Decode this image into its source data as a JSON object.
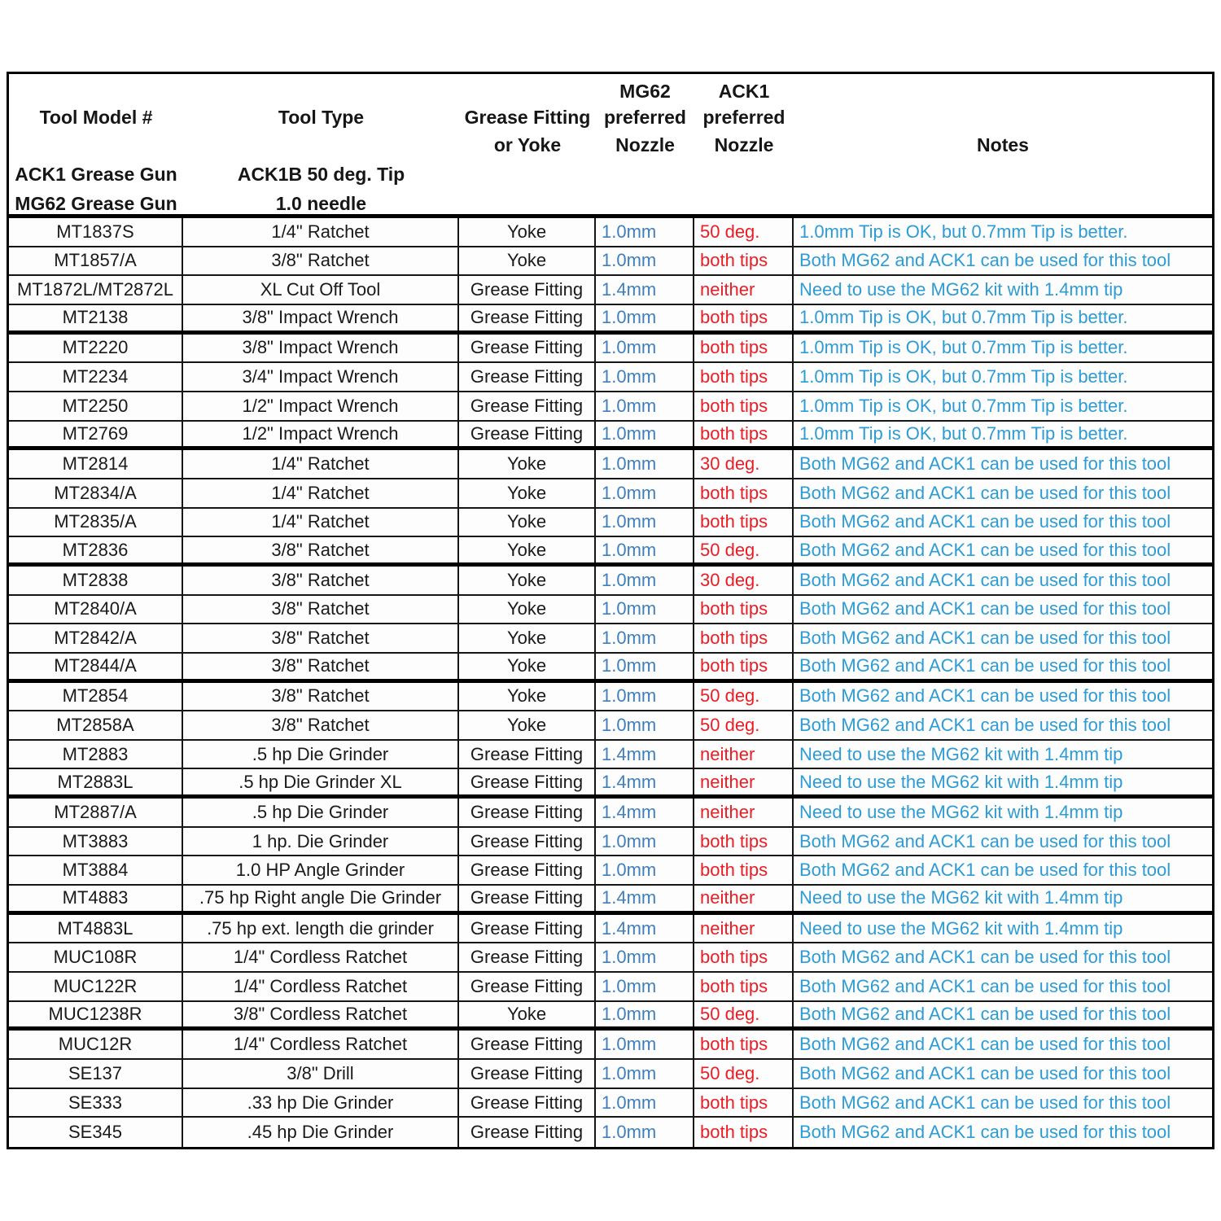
{
  "colors": {
    "nozzle_blue": "#3F7FBE",
    "preferred_red": "#ED1C24",
    "note_blue": "#2D9BD5",
    "body_text": "#1A1A1A",
    "border": "#000000"
  },
  "table": {
    "header": {
      "col1": {
        "title": "Tool Model #",
        "sub1": "ACK1 Grease Gun",
        "sub2": "MG62 Grease Gun"
      },
      "col2": {
        "title": "Tool Type",
        "sub1": "ACK1B 50 deg. Tip",
        "sub2": "1.0 needle"
      },
      "col3": {
        "line1": "Grease Fitting",
        "line2": "or Yoke"
      },
      "col4": {
        "line1": "MG62",
        "line2": "preferred",
        "line3": "Nozzle"
      },
      "col5": {
        "line1": "ACK1",
        "line2": "preferred",
        "line3": "Nozzle"
      },
      "col6": {
        "title": "Notes"
      }
    },
    "rows": [
      {
        "model": "MT1837S",
        "type": "1/4\" Ratchet",
        "fitting": "Yoke",
        "mg62": "1.0mm",
        "ack1": "50 deg.",
        "note": "1.0mm Tip is OK, but 0.7mm Tip is better."
      },
      {
        "model": "MT1857/A",
        "type": "3/8\" Ratchet",
        "fitting": "Yoke",
        "mg62": "1.0mm",
        "ack1": "both tips",
        "note": "Both MG62 and ACK1 can be used for this tool"
      },
      {
        "model": "MT1872L/MT2872L",
        "type": "XL Cut Off Tool",
        "fitting": "Grease Fitting",
        "mg62": "1.4mm",
        "ack1": "neither",
        "note": "Need to use the MG62 kit with 1.4mm tip"
      },
      {
        "model": "MT2138",
        "type": "3/8\" Impact Wrench",
        "fitting": "Grease Fitting",
        "mg62": "1.0mm",
        "ack1": "both tips",
        "note": "1.0mm Tip is OK, but 0.7mm Tip is better."
      },
      {
        "model": "MT2220",
        "type": "3/8\" Impact Wrench",
        "fitting": "Grease Fitting",
        "mg62": "1.0mm",
        "ack1": "both tips",
        "note": "1.0mm Tip is OK, but 0.7mm Tip is better."
      },
      {
        "model": "MT2234",
        "type": "3/4\" Impact Wrench",
        "fitting": "Grease Fitting",
        "mg62": "1.0mm",
        "ack1": "both tips",
        "note": "1.0mm Tip is OK, but 0.7mm Tip is better."
      },
      {
        "model": "MT2250",
        "type": "1/2\" Impact Wrench",
        "fitting": "Grease Fitting",
        "mg62": "1.0mm",
        "ack1": "both tips",
        "note": "1.0mm Tip is OK, but 0.7mm Tip is better."
      },
      {
        "model": "MT2769",
        "type": "1/2\" Impact Wrench",
        "fitting": "Grease Fitting",
        "mg62": "1.0mm",
        "ack1": "both tips",
        "note": "1.0mm Tip is OK, but 0.7mm Tip is better."
      },
      {
        "model": "MT2814",
        "type": "1/4\" Ratchet",
        "fitting": "Yoke",
        "mg62": "1.0mm",
        "ack1": "30 deg.",
        "note": "Both MG62 and ACK1 can be used for this tool"
      },
      {
        "model": "MT2834/A",
        "type": "1/4\" Ratchet",
        "fitting": "Yoke",
        "mg62": "1.0mm",
        "ack1": "both tips",
        "note": "Both MG62 and ACK1 can be used for this tool"
      },
      {
        "model": "MT2835/A",
        "type": "1/4\" Ratchet",
        "fitting": "Yoke",
        "mg62": "1.0mm",
        "ack1": "both tips",
        "note": "Both MG62 and ACK1 can be used for this tool"
      },
      {
        "model": "MT2836",
        "type": "3/8\" Ratchet",
        "fitting": "Yoke",
        "mg62": "1.0mm",
        "ack1": "50 deg.",
        "note": "Both MG62 and ACK1 can be used for this tool"
      },
      {
        "model": "MT2838",
        "type": "3/8\" Ratchet",
        "fitting": "Yoke",
        "mg62": "1.0mm",
        "ack1": "30 deg.",
        "note": "Both MG62 and ACK1 can be used for this tool"
      },
      {
        "model": "MT2840/A",
        "type": "3/8\" Ratchet",
        "fitting": "Yoke",
        "mg62": "1.0mm",
        "ack1": "both tips",
        "note": "Both MG62 and ACK1 can be used for this tool"
      },
      {
        "model": "MT2842/A",
        "type": "3/8\" Ratchet",
        "fitting": "Yoke",
        "mg62": "1.0mm",
        "ack1": "both tips",
        "note": "Both MG62 and ACK1 can be used for this tool"
      },
      {
        "model": "MT2844/A",
        "type": "3/8\" Ratchet",
        "fitting": "Yoke",
        "mg62": "1.0mm",
        "ack1": "both tips",
        "note": "Both MG62 and ACK1 can be used for this tool"
      },
      {
        "model": "MT2854",
        "type": "3/8\" Ratchet",
        "fitting": "Yoke",
        "mg62": "1.0mm",
        "ack1": "50 deg.",
        "note": "Both MG62 and ACK1 can be used for this tool"
      },
      {
        "model": "MT2858A",
        "type": "3/8\" Ratchet",
        "fitting": "Yoke",
        "mg62": "1.0mm",
        "ack1": "50 deg.",
        "note": "Both MG62 and ACK1 can be used for this tool"
      },
      {
        "model": "MT2883",
        "type": ".5 hp  Die Grinder",
        "fitting": "Grease Fitting",
        "mg62": "1.4mm",
        "ack1": "neither",
        "note": "Need to use the MG62 kit with 1.4mm tip"
      },
      {
        "model": "MT2883L",
        "type": ".5 hp  Die Grinder XL",
        "fitting": "Grease Fitting",
        "mg62": "1.4mm",
        "ack1": "neither",
        "note": "Need to use the MG62 kit with 1.4mm tip"
      },
      {
        "model": "MT2887/A",
        "type": ".5 hp  Die Grinder",
        "fitting": "Grease Fitting",
        "mg62": "1.4mm",
        "ack1": "neither",
        "note": "Need to use the MG62 kit with 1.4mm tip"
      },
      {
        "model": "MT3883",
        "type": "1 hp. Die Grinder",
        "fitting": "Grease Fitting",
        "mg62": "1.0mm",
        "ack1": "both tips",
        "note": "Both MG62 and ACK1 can be used for this tool"
      },
      {
        "model": "MT3884",
        "type": "1.0 HP Angle Grinder",
        "fitting": "Grease Fitting",
        "mg62": "1.0mm",
        "ack1": "both tips",
        "note": "Both MG62 and ACK1 can be used for this tool"
      },
      {
        "model": "MT4883",
        "type": ".75 hp Right angle  Die Grinder",
        "fitting": "Grease Fitting",
        "mg62": "1.4mm",
        "ack1": "neither",
        "note": "Need to use the MG62 kit with 1.4mm tip"
      },
      {
        "model": "MT4883L",
        "type": ".75 hp ext. length die grinder",
        "fitting": "Grease Fitting",
        "mg62": "1.4mm",
        "ack1": "neither",
        "note": "Need to use the MG62 kit with 1.4mm tip"
      },
      {
        "model": "MUC108R",
        "type": "1/4\" Cordless Ratchet",
        "fitting": "Grease Fitting",
        "mg62": "1.0mm",
        "ack1": "both tips",
        "note": "Both MG62 and ACK1 can be used for this tool"
      },
      {
        "model": "MUC122R",
        "type": "1/4\" Cordless Ratchet",
        "fitting": "Grease Fitting",
        "mg62": "1.0mm",
        "ack1": "both tips",
        "note": "Both MG62 and ACK1 can be used for this tool"
      },
      {
        "model": "MUC1238R",
        "type": "3/8\" Cordless Ratchet",
        "fitting": "Yoke",
        "mg62": "1.0mm",
        "ack1": "50 deg.",
        "note": "Both MG62 and ACK1 can be used for this tool"
      },
      {
        "model": "MUC12R",
        "type": "1/4\" Cordless Ratchet",
        "fitting": "Grease Fitting",
        "mg62": "1.0mm",
        "ack1": "both tips",
        "note": "Both MG62 and ACK1 can be used for this tool"
      },
      {
        "model": "SE137",
        "type": "3/8\" Drill",
        "fitting": "Grease Fitting",
        "mg62": "1.0mm",
        "ack1": "50 deg.",
        "note": "Both MG62 and ACK1 can be used for this tool"
      },
      {
        "model": "SE333",
        "type": ".33 hp  Die Grinder",
        "fitting": "Grease Fitting",
        "mg62": "1.0mm",
        "ack1": "both tips",
        "note": "Both MG62 and ACK1 can be used for this tool"
      },
      {
        "model": "SE345",
        "type": ".45 hp  Die Grinder",
        "fitting": "Grease Fitting",
        "mg62": "1.0mm",
        "ack1": "both tips",
        "note": "Both MG62 and ACK1 can be used for this tool"
      }
    ]
  }
}
